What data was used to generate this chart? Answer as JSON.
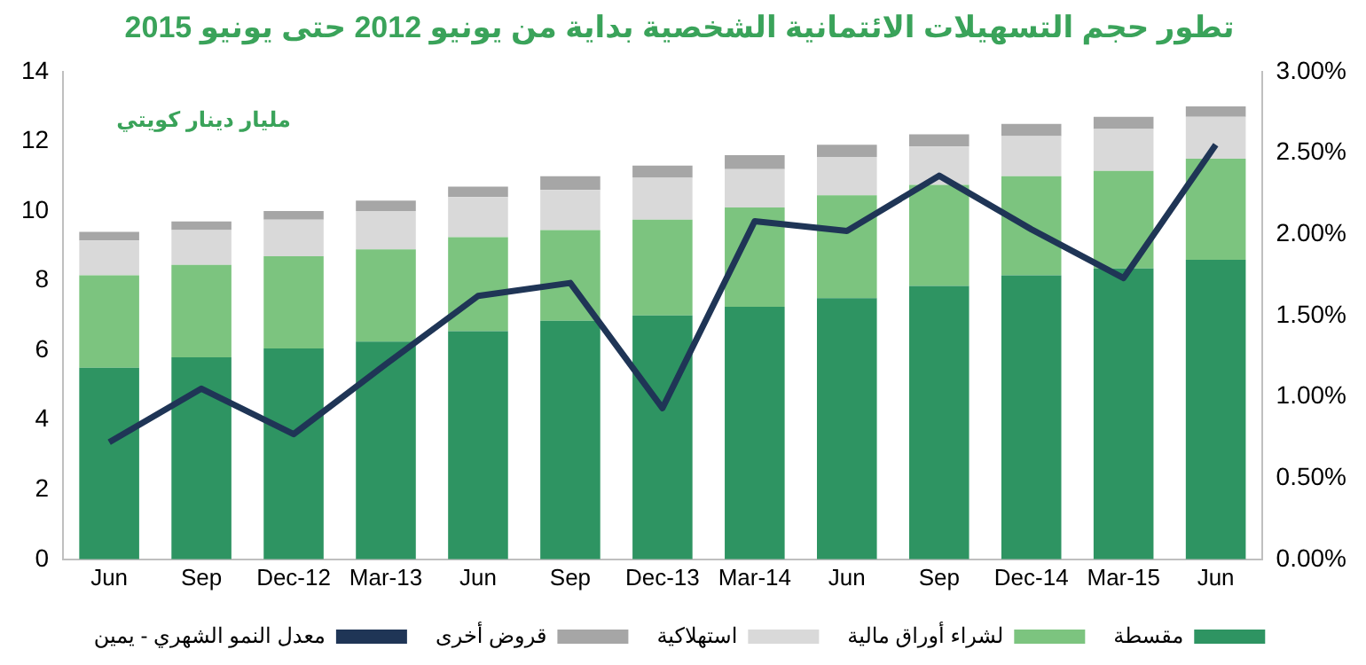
{
  "chart_data": {
    "type": "bar",
    "stacked": true,
    "title": "تطور حجم التسهيلات الائتمانية الشخصية بداية من يونيو 2012 حتى يونيو 2015",
    "annotations": [
      "مليار دينار كويتي"
    ],
    "categories": [
      "Jun",
      "Sep",
      "Dec-12",
      "Mar-13",
      "Jun",
      "Sep",
      "Dec-13",
      "Mar-14",
      "Jun",
      "Sep",
      "Dec-14",
      "Mar-15",
      "Jun"
    ],
    "series": [
      {
        "name": "مقسطة",
        "color": "#2e9462",
        "values": [
          5.5,
          5.8,
          6.05,
          6.25,
          6.55,
          6.85,
          7.0,
          7.25,
          7.5,
          7.85,
          8.15,
          8.35,
          8.6
        ]
      },
      {
        "name": "لشراء أوراق مالية",
        "color": "#7cc47f",
        "values": [
          2.65,
          2.65,
          2.65,
          2.65,
          2.7,
          2.6,
          2.75,
          2.85,
          2.95,
          2.9,
          2.85,
          2.8,
          2.9
        ]
      },
      {
        "name": "استهلاكية",
        "color": "#d9d9d9",
        "values": [
          1.0,
          1.0,
          1.05,
          1.1,
          1.15,
          1.15,
          1.2,
          1.1,
          1.1,
          1.1,
          1.15,
          1.2,
          1.2
        ]
      },
      {
        "name": "قروض أخرى",
        "color": "#a6a6a6",
        "values": [
          0.25,
          0.25,
          0.25,
          0.3,
          0.3,
          0.4,
          0.35,
          0.4,
          0.35,
          0.35,
          0.35,
          0.35,
          0.3
        ]
      },
      {
        "name": "معدل النمو الشهري - يمين",
        "type": "line",
        "axis": "y2",
        "color": "#1f3556",
        "values": [
          0.72,
          1.05,
          0.77,
          1.2,
          1.62,
          1.7,
          0.93,
          2.08,
          2.02,
          2.36,
          2.03,
          1.73,
          2.55
        ]
      }
    ],
    "ylim": [
      0,
      14
    ],
    "yticks": [
      0,
      2,
      4,
      6,
      8,
      10,
      12,
      14
    ],
    "y2lim": [
      0,
      3
    ],
    "y2ticks": [
      {
        "value": 0,
        "label": "0.00%"
      },
      {
        "value": 0.5,
        "label": "0.50%"
      },
      {
        "value": 1,
        "label": "1.00%"
      },
      {
        "value": 1.5,
        "label": "1.50%"
      },
      {
        "value": 2,
        "label": "2.00%"
      },
      {
        "value": 2.5,
        "label": "2.50%"
      },
      {
        "value": 3,
        "label": "3.00%"
      }
    ],
    "legend": "bottom",
    "grid": false,
    "marker": "none",
    "line_style": "solid"
  }
}
